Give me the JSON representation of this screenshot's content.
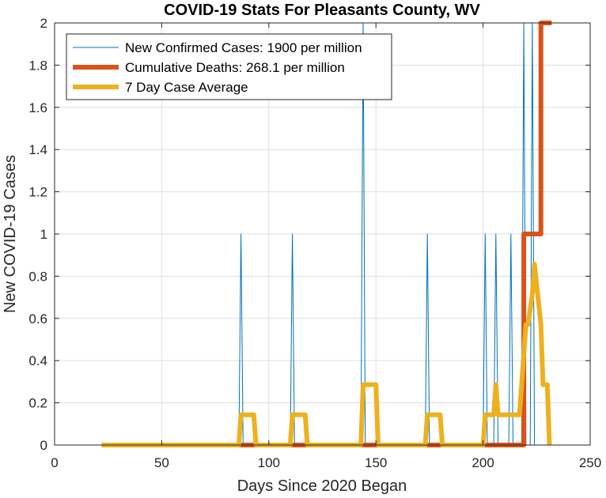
{
  "chart_data": {
    "type": "line",
    "title": "COVID-19 Stats For Pleasants County, WV",
    "xlabel": "Days Since 2020 Began",
    "ylabel": "New COVID-19 Cases",
    "xlim": [
      0,
      250
    ],
    "ylim": [
      0,
      2
    ],
    "xticks": [
      0,
      50,
      100,
      150,
      200,
      250
    ],
    "yticks": [
      0,
      0.2,
      0.4,
      0.6,
      0.8,
      1,
      1.2,
      1.4,
      1.6,
      1.8,
      2
    ],
    "grid": true,
    "legend_location": "top-left",
    "series": [
      {
        "name": "New Confirmed Cases: 1900 per million",
        "color": "#0072bd",
        "line_weight": "thin",
        "x": [
          22,
          86,
          87,
          88,
          110,
          111,
          112,
          143,
          144,
          145,
          173,
          174,
          175,
          200,
          201,
          202,
          205,
          206,
          207,
          212,
          213,
          214,
          218,
          219,
          220,
          222,
          223,
          224,
          231
        ],
        "y": [
          0,
          0,
          1,
          0,
          0,
          1,
          0,
          0,
          2,
          0,
          0,
          1,
          0,
          0,
          1,
          0,
          0,
          1,
          0,
          0,
          1,
          0,
          0,
          2,
          0,
          0,
          2,
          0,
          0
        ]
      },
      {
        "name": "Cumulative Deaths: 268.1 per million",
        "color": "#d95319",
        "line_weight": "thick",
        "x": [
          22,
          219,
          219,
          227,
          227,
          232
        ],
        "y": [
          0,
          0,
          1,
          1,
          2,
          2
        ]
      },
      {
        "name": "7 Day Case Average",
        "color": "#edb120",
        "line_weight": "thick",
        "x": [
          22,
          86,
          87,
          93,
          94,
          110,
          111,
          117,
          118,
          143,
          144,
          150,
          151,
          173,
          174,
          180,
          181,
          200,
          201,
          205,
          206,
          207,
          208,
          217,
          219,
          220,
          221,
          223,
          224,
          227,
          228,
          230,
          231
        ],
        "y": [
          0,
          0,
          0.143,
          0.143,
          0,
          0,
          0.143,
          0.143,
          0,
          0,
          0.286,
          0.286,
          0,
          0,
          0.143,
          0.143,
          0,
          0,
          0.143,
          0.143,
          0.286,
          0.143,
          0.143,
          0.143,
          0.429,
          0.571,
          0.571,
          0.714,
          0.857,
          0.571,
          0.286,
          0.286,
          0
        ]
      }
    ]
  }
}
